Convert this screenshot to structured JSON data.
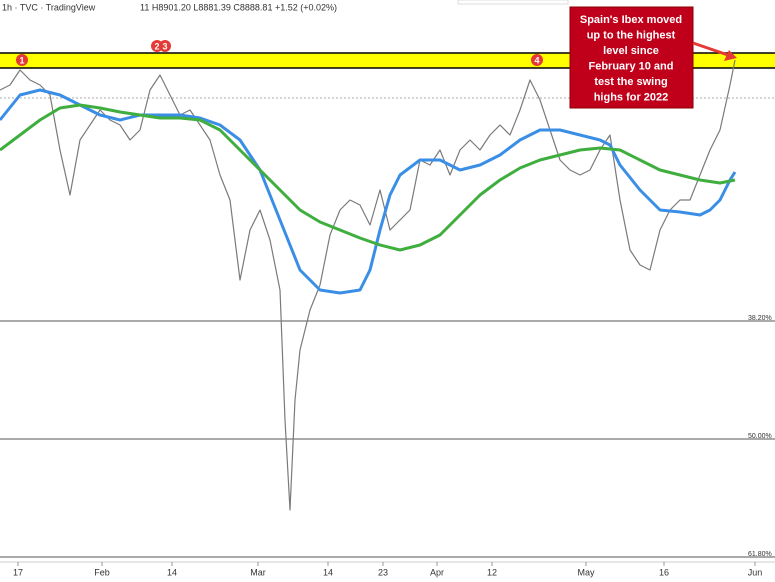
{
  "chart_data": {
    "type": "line",
    "header": {
      "symbol": "1h · TVC · TradingView",
      "ohlc": "11 H8901.20 L8881.39 C8888.81 +1.52 (+0.02%)"
    },
    "annotation": {
      "lines": [
        "Spain's Ibex moved",
        "up to the highest",
        "level since",
        "February 10 and",
        "test the swing",
        "highs for 2022"
      ]
    },
    "xlim": [
      0,
      775
    ],
    "xticks": [
      {
        "value": 18,
        "label": "17"
      },
      {
        "value": 102,
        "label": "Feb"
      },
      {
        "value": 172,
        "label": "14"
      },
      {
        "value": 258,
        "label": "Mar"
      },
      {
        "value": 328,
        "label": "14"
      },
      {
        "value": 383,
        "label": "23"
      },
      {
        "value": 437,
        "label": "Apr"
      },
      {
        "value": 492,
        "label": "12"
      },
      {
        "value": 586,
        "label": "May"
      },
      {
        "value": 664,
        "label": "16"
      },
      {
        "value": 755,
        "label": "Jun"
      }
    ],
    "ylim": [
      62.1,
      6.1
    ],
    "yticks": [
      {
        "value": 38.2,
        "label": "38.20%"
      },
      {
        "value": 50,
        "label": "50.00%"
      },
      {
        "value": 61.8,
        "label": "61.80%"
      }
    ],
    "band": {
      "values": [
        11.4,
        12.9
      ],
      "color": "#ffff00"
    },
    "dashed_level": 15.9,
    "markers": [
      {
        "label": "1",
        "x": 22,
        "y": 12.1
      },
      {
        "label": "2",
        "x": 157,
        "y": 10.7
      },
      {
        "label": "3",
        "x": 165,
        "y": 10.7
      },
      {
        "label": "4",
        "x": 537,
        "y": 12.1
      }
    ],
    "series": [
      {
        "color": "#7a7a7a",
        "width": 1.2,
        "x": [
          0,
          10,
          20,
          30,
          40,
          50,
          60,
          70,
          80,
          90,
          100,
          110,
          120,
          130,
          140,
          150,
          160,
          170,
          180,
          190,
          200,
          210,
          220,
          230,
          240,
          250,
          260,
          270,
          280,
          285,
          290,
          295,
          300,
          310,
          320,
          330,
          340,
          350,
          360,
          370,
          380,
          390,
          400,
          410,
          420,
          430,
          440,
          450,
          460,
          470,
          480,
          490,
          500,
          510,
          520,
          530,
          540,
          550,
          560,
          570,
          580,
          590,
          600,
          610,
          620,
          630,
          640,
          650,
          660,
          670,
          680,
          690,
          700,
          710,
          720,
          730,
          735
        ],
        "values": [
          15.1,
          14.6,
          13.1,
          14.1,
          14.6,
          15.6,
          21.1,
          25.6,
          20.1,
          18.6,
          17.1,
          18.1,
          18.6,
          20.1,
          19.1,
          15.1,
          13.6,
          15.6,
          17.6,
          17.1,
          18.6,
          20.1,
          23.6,
          26.1,
          34.1,
          29.1,
          27.1,
          30.1,
          35.1,
          48.1,
          57.1,
          46.1,
          41.1,
          37.1,
          34.6,
          29.6,
          27.1,
          26.1,
          26.6,
          28.6,
          25.1,
          29.1,
          28.1,
          27.1,
          22.1,
          22.6,
          21.1,
          23.6,
          21.1,
          20.1,
          21.1,
          19.6,
          18.6,
          19.6,
          17.1,
          14.1,
          16.1,
          19.1,
          22.1,
          23.1,
          23.6,
          23.1,
          21.1,
          19.6,
          26.1,
          31.1,
          32.6,
          33.1,
          29.1,
          27.1,
          26.1,
          26.1,
          23.6,
          21.1,
          19.1,
          14.6,
          12.1
        ]
      },
      {
        "color": "#3a8ee6",
        "width": 3,
        "x": [
          0,
          20,
          40,
          60,
          80,
          100,
          120,
          140,
          160,
          180,
          200,
          220,
          240,
          260,
          280,
          300,
          320,
          340,
          360,
          370,
          380,
          390,
          400,
          420,
          440,
          460,
          480,
          500,
          520,
          540,
          560,
          580,
          600,
          610,
          620,
          640,
          660,
          680,
          700,
          710,
          720,
          730,
          735
        ],
        "values": [
          18.1,
          15.6,
          15.1,
          15.6,
          16.6,
          17.6,
          18.1,
          17.6,
          17.6,
          17.6,
          17.9,
          18.6,
          20.1,
          23.1,
          28.1,
          33.1,
          35.1,
          35.4,
          35.1,
          33.1,
          29.1,
          25.6,
          23.6,
          22.1,
          22.1,
          23.1,
          22.6,
          21.6,
          20.1,
          19.1,
          19.1,
          19.6,
          20.1,
          20.6,
          22.6,
          25.1,
          27.1,
          27.3,
          27.6,
          27.1,
          26.1,
          24.1,
          23.3
        ]
      },
      {
        "color": "#3fae3f",
        "width": 3,
        "x": [
          0,
          20,
          40,
          60,
          80,
          100,
          120,
          140,
          160,
          180,
          200,
          220,
          240,
          260,
          280,
          300,
          320,
          340,
          360,
          380,
          400,
          420,
          440,
          460,
          480,
          500,
          520,
          540,
          560,
          580,
          600,
          620,
          640,
          660,
          680,
          700,
          720,
          735
        ],
        "values": [
          21.1,
          19.6,
          18.1,
          16.9,
          16.6,
          16.9,
          17.3,
          17.6,
          17.9,
          17.9,
          18.1,
          19.1,
          21.1,
          23.1,
          25.1,
          27.1,
          28.3,
          29.1,
          29.9,
          30.6,
          31.1,
          30.6,
          29.6,
          27.6,
          25.6,
          24.1,
          22.9,
          22.1,
          21.6,
          21.1,
          20.9,
          21.1,
          22.1,
          23.1,
          23.6,
          24.1,
          24.4,
          24.1
        ]
      }
    ]
  }
}
